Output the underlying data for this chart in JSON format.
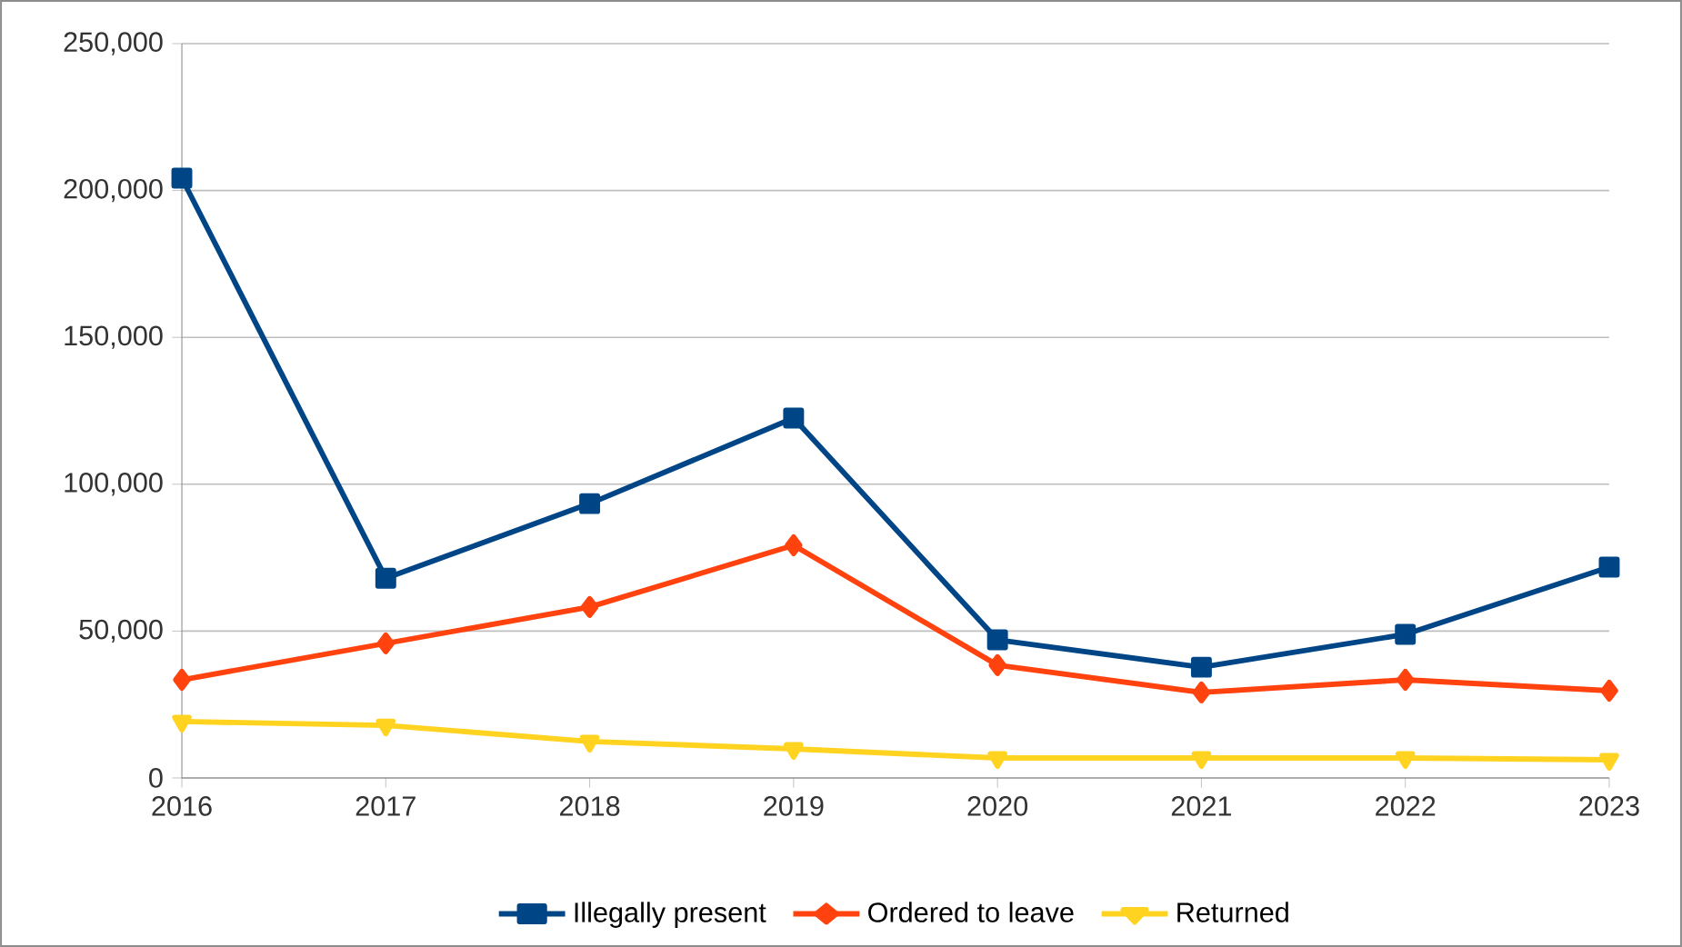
{
  "chart_data": {
    "type": "line",
    "categories": [
      "2016",
      "2017",
      "2018",
      "2019",
      "2020",
      "2021",
      "2022",
      "2023"
    ],
    "series": [
      {
        "name": "Illegally present",
        "color": "#004586",
        "marker": "square",
        "values": [
          204200,
          68000,
          93400,
          122500,
          47000,
          37700,
          48900,
          71800
        ]
      },
      {
        "name": "Ordered to leave",
        "color": "#ff420e",
        "marker": "diamond",
        "values": [
          33400,
          45800,
          58200,
          79200,
          38400,
          29100,
          33400,
          29700
        ]
      },
      {
        "name": "Returned",
        "color": "#ffd320",
        "marker": "triangle",
        "values": [
          19200,
          17900,
          12400,
          9900,
          6800,
          6800,
          6800,
          6200
        ]
      }
    ],
    "ylim": [
      0,
      250000
    ],
    "yticks": [
      0,
      {
        "value": 50000,
        "label": "50,000"
      },
      {
        "value": 100000,
        "label": "100,000"
      },
      {
        "value": 150000,
        "label": "150,000"
      },
      {
        "value": 200000,
        "label": "200,000"
      },
      {
        "value": 250000,
        "label": "250,000"
      }
    ],
    "grid": "y",
    "legend": "bottom",
    "line_style": "solid"
  }
}
